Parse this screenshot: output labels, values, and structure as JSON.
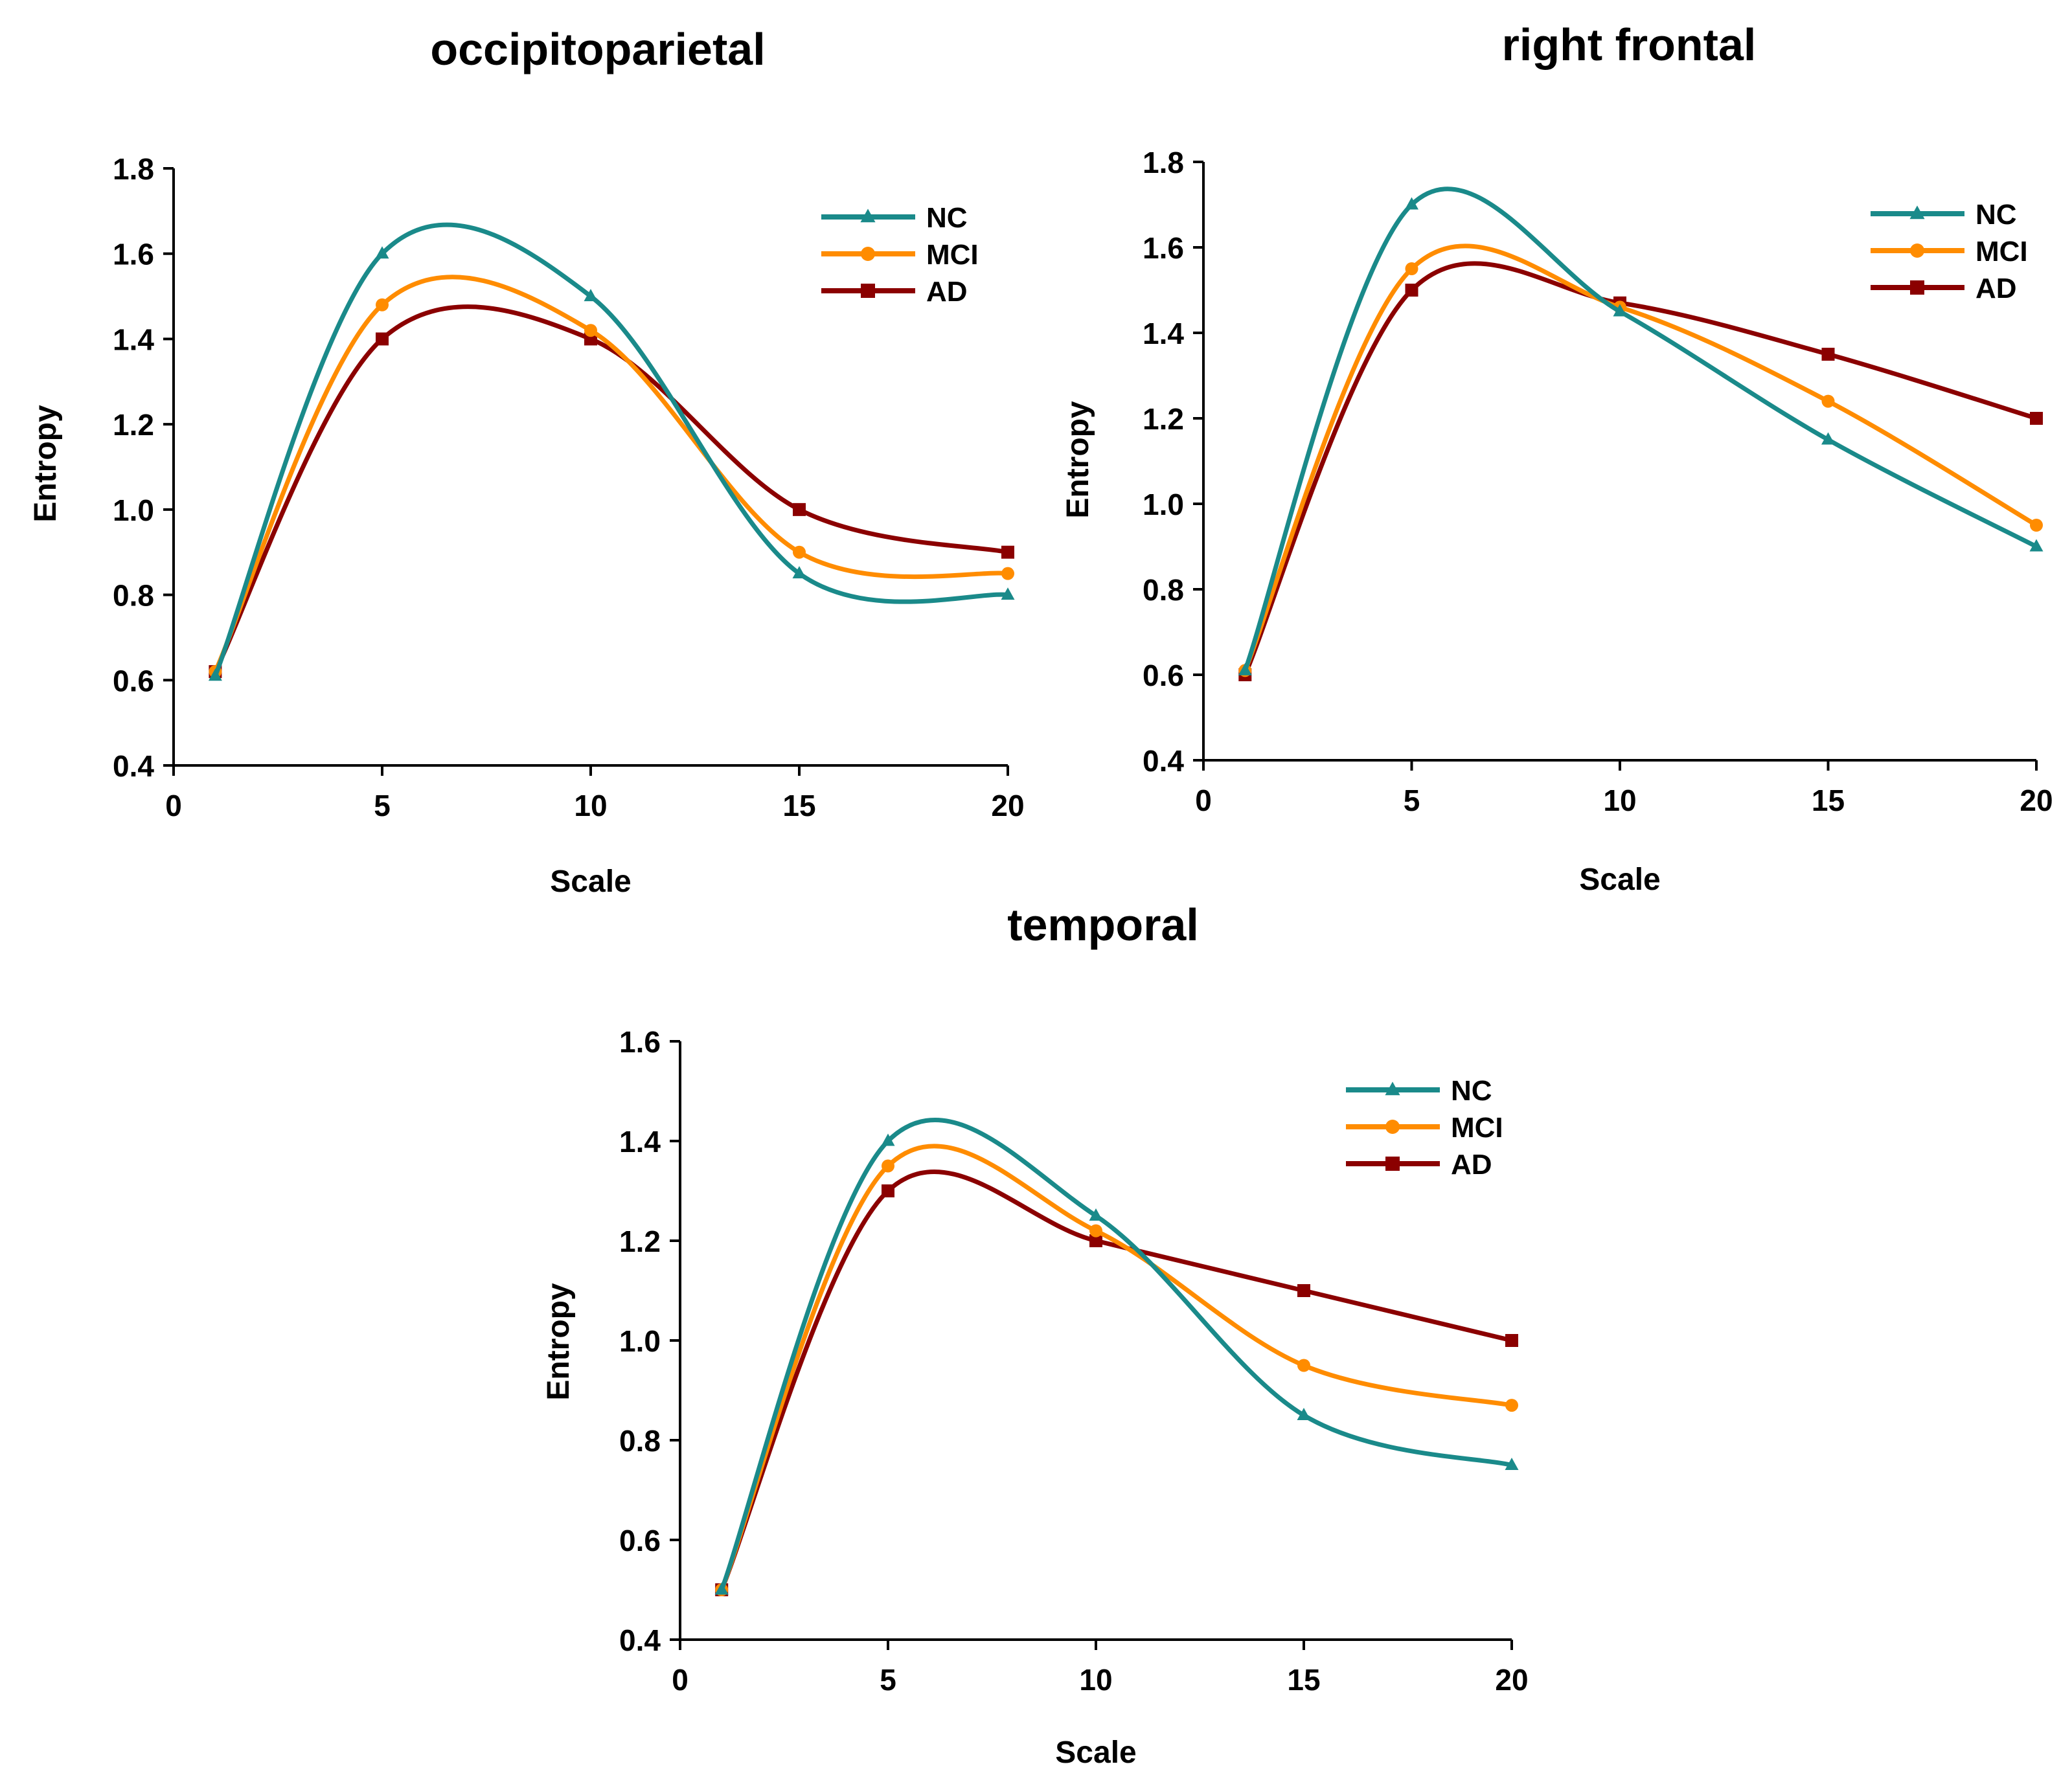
{
  "figure": {
    "colors": {
      "NC": "#1a8a8a",
      "MCI": "#ff8c00",
      "AD": "#8b0000",
      "axis": "#000000"
    },
    "marker_icons": {
      "NC": "triangle-icon",
      "MCI": "circle-icon",
      "AD": "square-icon"
    }
  },
  "chart_data": [
    {
      "id": "occipitoparietal",
      "type": "line",
      "title": "occipitoparietal",
      "xlabel": "Scale",
      "ylabel": "Entropy",
      "xlim": [
        0,
        20
      ],
      "ylim": [
        0.4,
        1.8
      ],
      "xticks": [
        "0",
        "5",
        "10",
        "15",
        "20"
      ],
      "yticks": [
        "0.4",
        "0.6",
        "0.8",
        "1.0",
        "1.2",
        "1.4",
        "1.6",
        "1.8"
      ],
      "legend_position": "top-right",
      "grid": false,
      "smooth": true,
      "x": [
        1,
        5,
        10,
        15,
        20
      ],
      "series": [
        {
          "name": "NC",
          "marker": "triangle",
          "values": [
            0.61,
            1.6,
            1.5,
            0.85,
            0.8
          ]
        },
        {
          "name": "MCI",
          "marker": "circle",
          "values": [
            0.62,
            1.48,
            1.42,
            0.9,
            0.85
          ]
        },
        {
          "name": "AD",
          "marker": "square",
          "values": [
            0.62,
            1.4,
            1.4,
            1.0,
            0.9
          ]
        }
      ]
    },
    {
      "id": "right-frontal",
      "type": "line",
      "title": "right frontal",
      "xlabel": "Scale",
      "ylabel": "Entropy",
      "xlim": [
        0,
        20
      ],
      "ylim": [
        0.4,
        1.8
      ],
      "xticks": [
        "0",
        "5",
        "10",
        "15",
        "20"
      ],
      "yticks": [
        "0.4",
        "0.6",
        "0.8",
        "1.0",
        "1.2",
        "1.4",
        "1.6",
        "1.8"
      ],
      "legend_position": "top-right",
      "grid": false,
      "smooth": true,
      "x": [
        1,
        5,
        10,
        15,
        20
      ],
      "series": [
        {
          "name": "NC",
          "marker": "triangle",
          "values": [
            0.61,
            1.7,
            1.45,
            1.15,
            0.9
          ]
        },
        {
          "name": "MCI",
          "marker": "circle",
          "values": [
            0.61,
            1.55,
            1.46,
            1.24,
            0.95
          ]
        },
        {
          "name": "AD",
          "marker": "square",
          "values": [
            0.6,
            1.5,
            1.47,
            1.35,
            1.2
          ]
        }
      ]
    },
    {
      "id": "temporal",
      "type": "line",
      "title": "temporal",
      "xlabel": "Scale",
      "ylabel": "Entropy",
      "xlim": [
        0,
        20
      ],
      "ylim": [
        0.4,
        1.6
      ],
      "xticks": [
        "0",
        "5",
        "10",
        "15",
        "20"
      ],
      "yticks": [
        "0.4",
        "0.6",
        "0.8",
        "1.0",
        "1.2",
        "1.4",
        "1.6"
      ],
      "legend_position": "top-right",
      "grid": false,
      "smooth": true,
      "x": [
        1,
        5,
        10,
        15,
        20
      ],
      "series": [
        {
          "name": "NC",
          "marker": "triangle",
          "values": [
            0.5,
            1.4,
            1.25,
            0.85,
            0.75
          ]
        },
        {
          "name": "MCI",
          "marker": "circle",
          "values": [
            0.5,
            1.35,
            1.22,
            0.95,
            0.87
          ]
        },
        {
          "name": "AD",
          "marker": "square",
          "values": [
            0.5,
            1.3,
            1.2,
            1.1,
            1.0
          ]
        }
      ]
    }
  ]
}
